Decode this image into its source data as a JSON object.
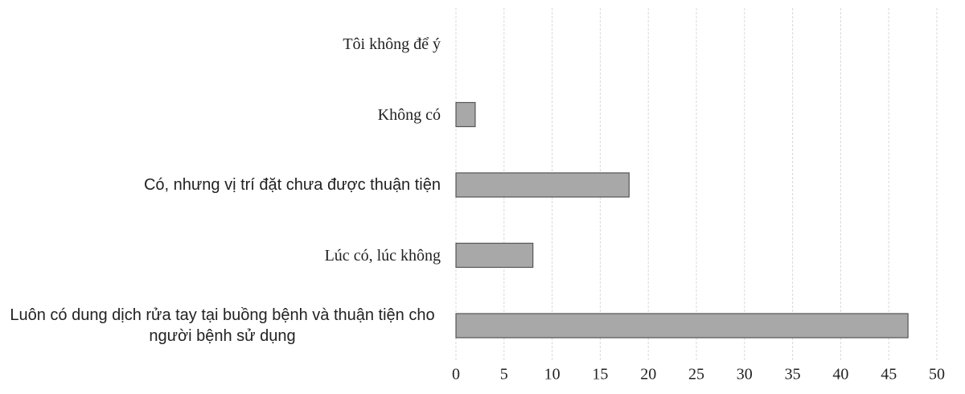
{
  "chart_data": {
    "type": "bar",
    "orientation": "horizontal",
    "categories": [
      "Tôi không để ý",
      "Không có",
      "Có, nhưng vị trí đặt chưa được thuận tiện",
      "Lúc có, lúc không",
      "Luôn có dung dịch rửa tay tại buồng bệnh và thuận tiện cho người bệnh sử dụng"
    ],
    "values": [
      0,
      2,
      18,
      8,
      47
    ],
    "color": "#a8a8a8",
    "xlim": [
      0,
      50
    ],
    "xticks": [
      0,
      5,
      10,
      15,
      20,
      25,
      30,
      35,
      40,
      45,
      50
    ],
    "grid": true
  }
}
